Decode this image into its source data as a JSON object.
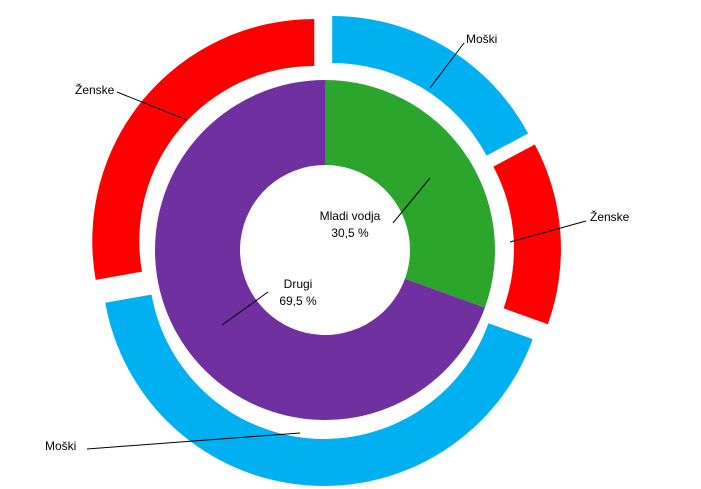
{
  "chart_data": {
    "type": "sunburst",
    "inner": {
      "categories": [
        "Mladi vodja",
        "Drugi"
      ],
      "values": [
        30.5,
        69.5
      ],
      "value_labels": [
        "30,5 %",
        "69,5 %"
      ],
      "colors": [
        "#2ca52c",
        "#7030a0"
      ]
    },
    "outer": {
      "categories": [
        "Moški",
        "Ženske",
        "Moški",
        "Ženske"
      ],
      "values": [
        17.2,
        13.3,
        41.7,
        27.8
      ],
      "colors": [
        "#00b0f0",
        "#ff0000",
        "#00b0f0",
        "#ff0000"
      ]
    }
  }
}
